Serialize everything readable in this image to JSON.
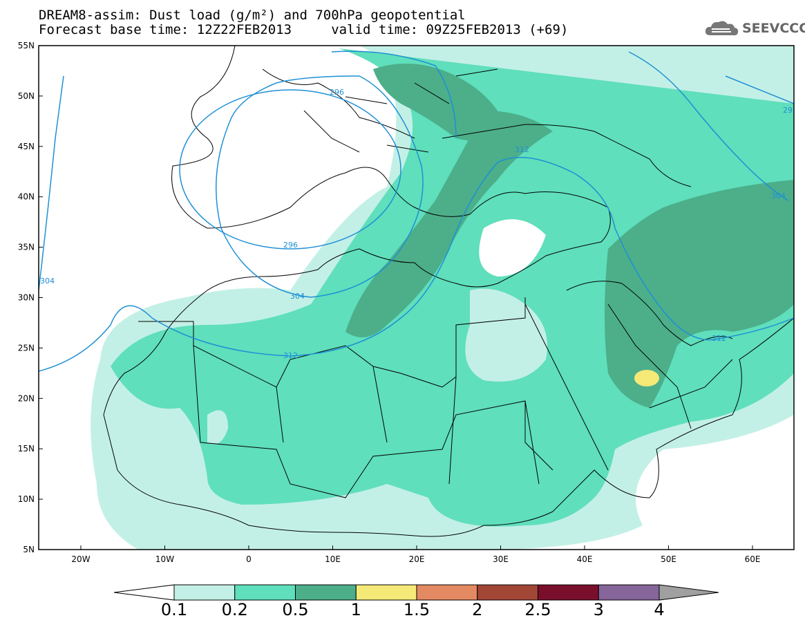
{
  "title": {
    "line1": "DREAM8-assim: Dust load (g/m²) and 700hPa geopotential",
    "line2": "Forecast base time: 12Z22FEB2013     valid time: 09Z25FEB2013 (+69)"
  },
  "logo": {
    "text": "SEEVCCC",
    "icon": "cloud-icon"
  },
  "map": {
    "lat_labels": [
      "55N",
      "50N",
      "45N",
      "40N",
      "35N",
      "30N",
      "25N",
      "20N",
      "15N",
      "10N",
      "5N"
    ],
    "lon_labels": [
      "20W",
      "10W",
      "0",
      "10E",
      "20E",
      "30E",
      "40E",
      "50E",
      "60E"
    ],
    "contour_labels": [
      "296",
      "296",
      "304",
      "304",
      "304",
      "312",
      "312",
      "312",
      "29"
    ]
  },
  "colorbar": {
    "levels": [
      "0.1",
      "0.2",
      "0.5",
      "1",
      "1.5",
      "2",
      "2.5",
      "3",
      "4"
    ],
    "colors": [
      "#ffffff",
      "#c3f0e6",
      "#5fdfbb",
      "#4caf8a",
      "#f5e978",
      "#e38a62",
      "#a24636",
      "#7a0f2c",
      "#86659a",
      "#a0a0a0"
    ]
  }
}
